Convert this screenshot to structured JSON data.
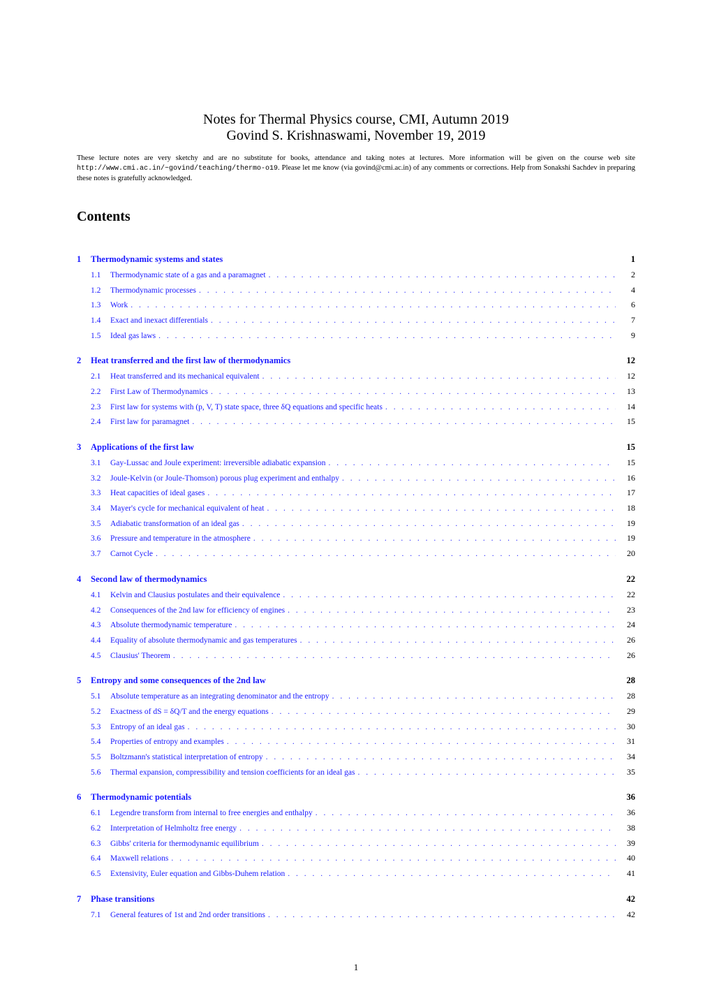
{
  "colors": {
    "link": "#1a1aff",
    "text": "#000000",
    "background": "#ffffff"
  },
  "typography": {
    "body_font": "Times New Roman",
    "mono_font": "Courier New",
    "title_fontsize_pt": 15,
    "contents_heading_fontsize_pt": 15,
    "section_fontsize_pt": 9.5,
    "subsection_fontsize_pt": 8.5,
    "preamble_fontsize_pt": 8
  },
  "title": {
    "line1": "Notes for Thermal Physics course, CMI, Autumn 2019",
    "line2": "Govind S. Krishnaswami, November 19, 2019"
  },
  "preamble": {
    "prefix": "These lecture notes are very sketchy and are no substitute for books, attendance and taking notes at lectures. More information will be given on the course web site ",
    "url": "http://www.cmi.ac.in/~govind/teaching/thermo-o19",
    "suffix": ". Please let me know (via govind@cmi.ac.in) of any comments or corrections. Help from Sonakshi Sachdev in preparing these notes is gratefully acknowledged."
  },
  "contents_heading": "Contents",
  "sections": [
    {
      "num": "1",
      "title": "Thermodynamic systems and states",
      "page": "1",
      "subs": [
        {
          "num": "1.1",
          "title": "Thermodynamic state of a gas and a paramagnet",
          "page": "2"
        },
        {
          "num": "1.2",
          "title": "Thermodynamic processes",
          "page": "4"
        },
        {
          "num": "1.3",
          "title": "Work",
          "page": "6"
        },
        {
          "num": "1.4",
          "title": "Exact and inexact differentials",
          "page": "7"
        },
        {
          "num": "1.5",
          "title": "Ideal gas laws",
          "page": "9"
        }
      ]
    },
    {
      "num": "2",
      "title": "Heat transferred and the first law of thermodynamics",
      "page": "12",
      "subs": [
        {
          "num": "2.1",
          "title": "Heat transferred and its mechanical equivalent",
          "page": "12"
        },
        {
          "num": "2.2",
          "title": "First Law of Thermodynamics",
          "page": "13"
        },
        {
          "num": "2.3",
          "title": "First law for systems with (p, V, T) state space, three δQ equations and specific heats",
          "page": "14"
        },
        {
          "num": "2.4",
          "title": "First law for paramagnet",
          "page": "15"
        }
      ]
    },
    {
      "num": "3",
      "title": "Applications of the first law",
      "page": "15",
      "subs": [
        {
          "num": "3.1",
          "title": "Gay-Lussac and Joule experiment: irreversible adiabatic expansion",
          "page": "15"
        },
        {
          "num": "3.2",
          "title": "Joule-Kelvin (or Joule-Thomson) porous plug experiment and enthalpy",
          "page": "16"
        },
        {
          "num": "3.3",
          "title": "Heat capacities of ideal gases",
          "page": "17"
        },
        {
          "num": "3.4",
          "title": "Mayer's cycle for mechanical equivalent of heat",
          "page": "18"
        },
        {
          "num": "3.5",
          "title": "Adiabatic transformation of an ideal gas",
          "page": "19"
        },
        {
          "num": "3.6",
          "title": "Pressure and temperature in the atmosphere",
          "page": "19"
        },
        {
          "num": "3.7",
          "title": "Carnot Cycle",
          "page": "20"
        }
      ]
    },
    {
      "num": "4",
      "title": "Second law of thermodynamics",
      "page": "22",
      "subs": [
        {
          "num": "4.1",
          "title": "Kelvin and Clausius postulates and their equivalence",
          "page": "22"
        },
        {
          "num": "4.2",
          "title": "Consequences of the 2nd law for efficiency of engines",
          "page": "23"
        },
        {
          "num": "4.3",
          "title": "Absolute thermodynamic temperature",
          "page": "24"
        },
        {
          "num": "4.4",
          "title": "Equality of absolute thermodynamic and gas temperatures",
          "page": "26"
        },
        {
          "num": "4.5",
          "title": "Clausius' Theorem",
          "page": "26"
        }
      ]
    },
    {
      "num": "5",
      "title": "Entropy and some consequences of the 2nd law",
      "page": "28",
      "subs": [
        {
          "num": "5.1",
          "title": "Absolute temperature as an integrating denominator and the entropy",
          "page": "28"
        },
        {
          "num": "5.2",
          "title": "Exactness of dS = δQ/T and the energy equations",
          "page": "29"
        },
        {
          "num": "5.3",
          "title": "Entropy of an ideal gas",
          "page": "30"
        },
        {
          "num": "5.4",
          "title": "Properties of entropy and examples",
          "page": "31"
        },
        {
          "num": "5.5",
          "title": "Boltzmann's statistical interpretation of entropy",
          "page": "34"
        },
        {
          "num": "5.6",
          "title": "Thermal expansion, compressibility and tension coefficients for an ideal gas",
          "page": "35"
        }
      ]
    },
    {
      "num": "6",
      "title": "Thermodynamic potentials",
      "page": "36",
      "subs": [
        {
          "num": "6.1",
          "title": "Legendre transform from internal to free energies and enthalpy",
          "page": "36"
        },
        {
          "num": "6.2",
          "title": "Interpretation of Helmholtz free energy",
          "page": "38"
        },
        {
          "num": "6.3",
          "title": "Gibbs' criteria for thermodynamic equilibrium",
          "page": "39"
        },
        {
          "num": "6.4",
          "title": "Maxwell relations",
          "page": "40"
        },
        {
          "num": "6.5",
          "title": "Extensivity, Euler equation and Gibbs-Duhem relation",
          "page": "41"
        }
      ]
    },
    {
      "num": "7",
      "title": "Phase transitions",
      "page": "42",
      "subs": [
        {
          "num": "7.1",
          "title": "General features of 1st and 2nd order transitions",
          "page": "42"
        }
      ]
    }
  ],
  "page_number": "1"
}
